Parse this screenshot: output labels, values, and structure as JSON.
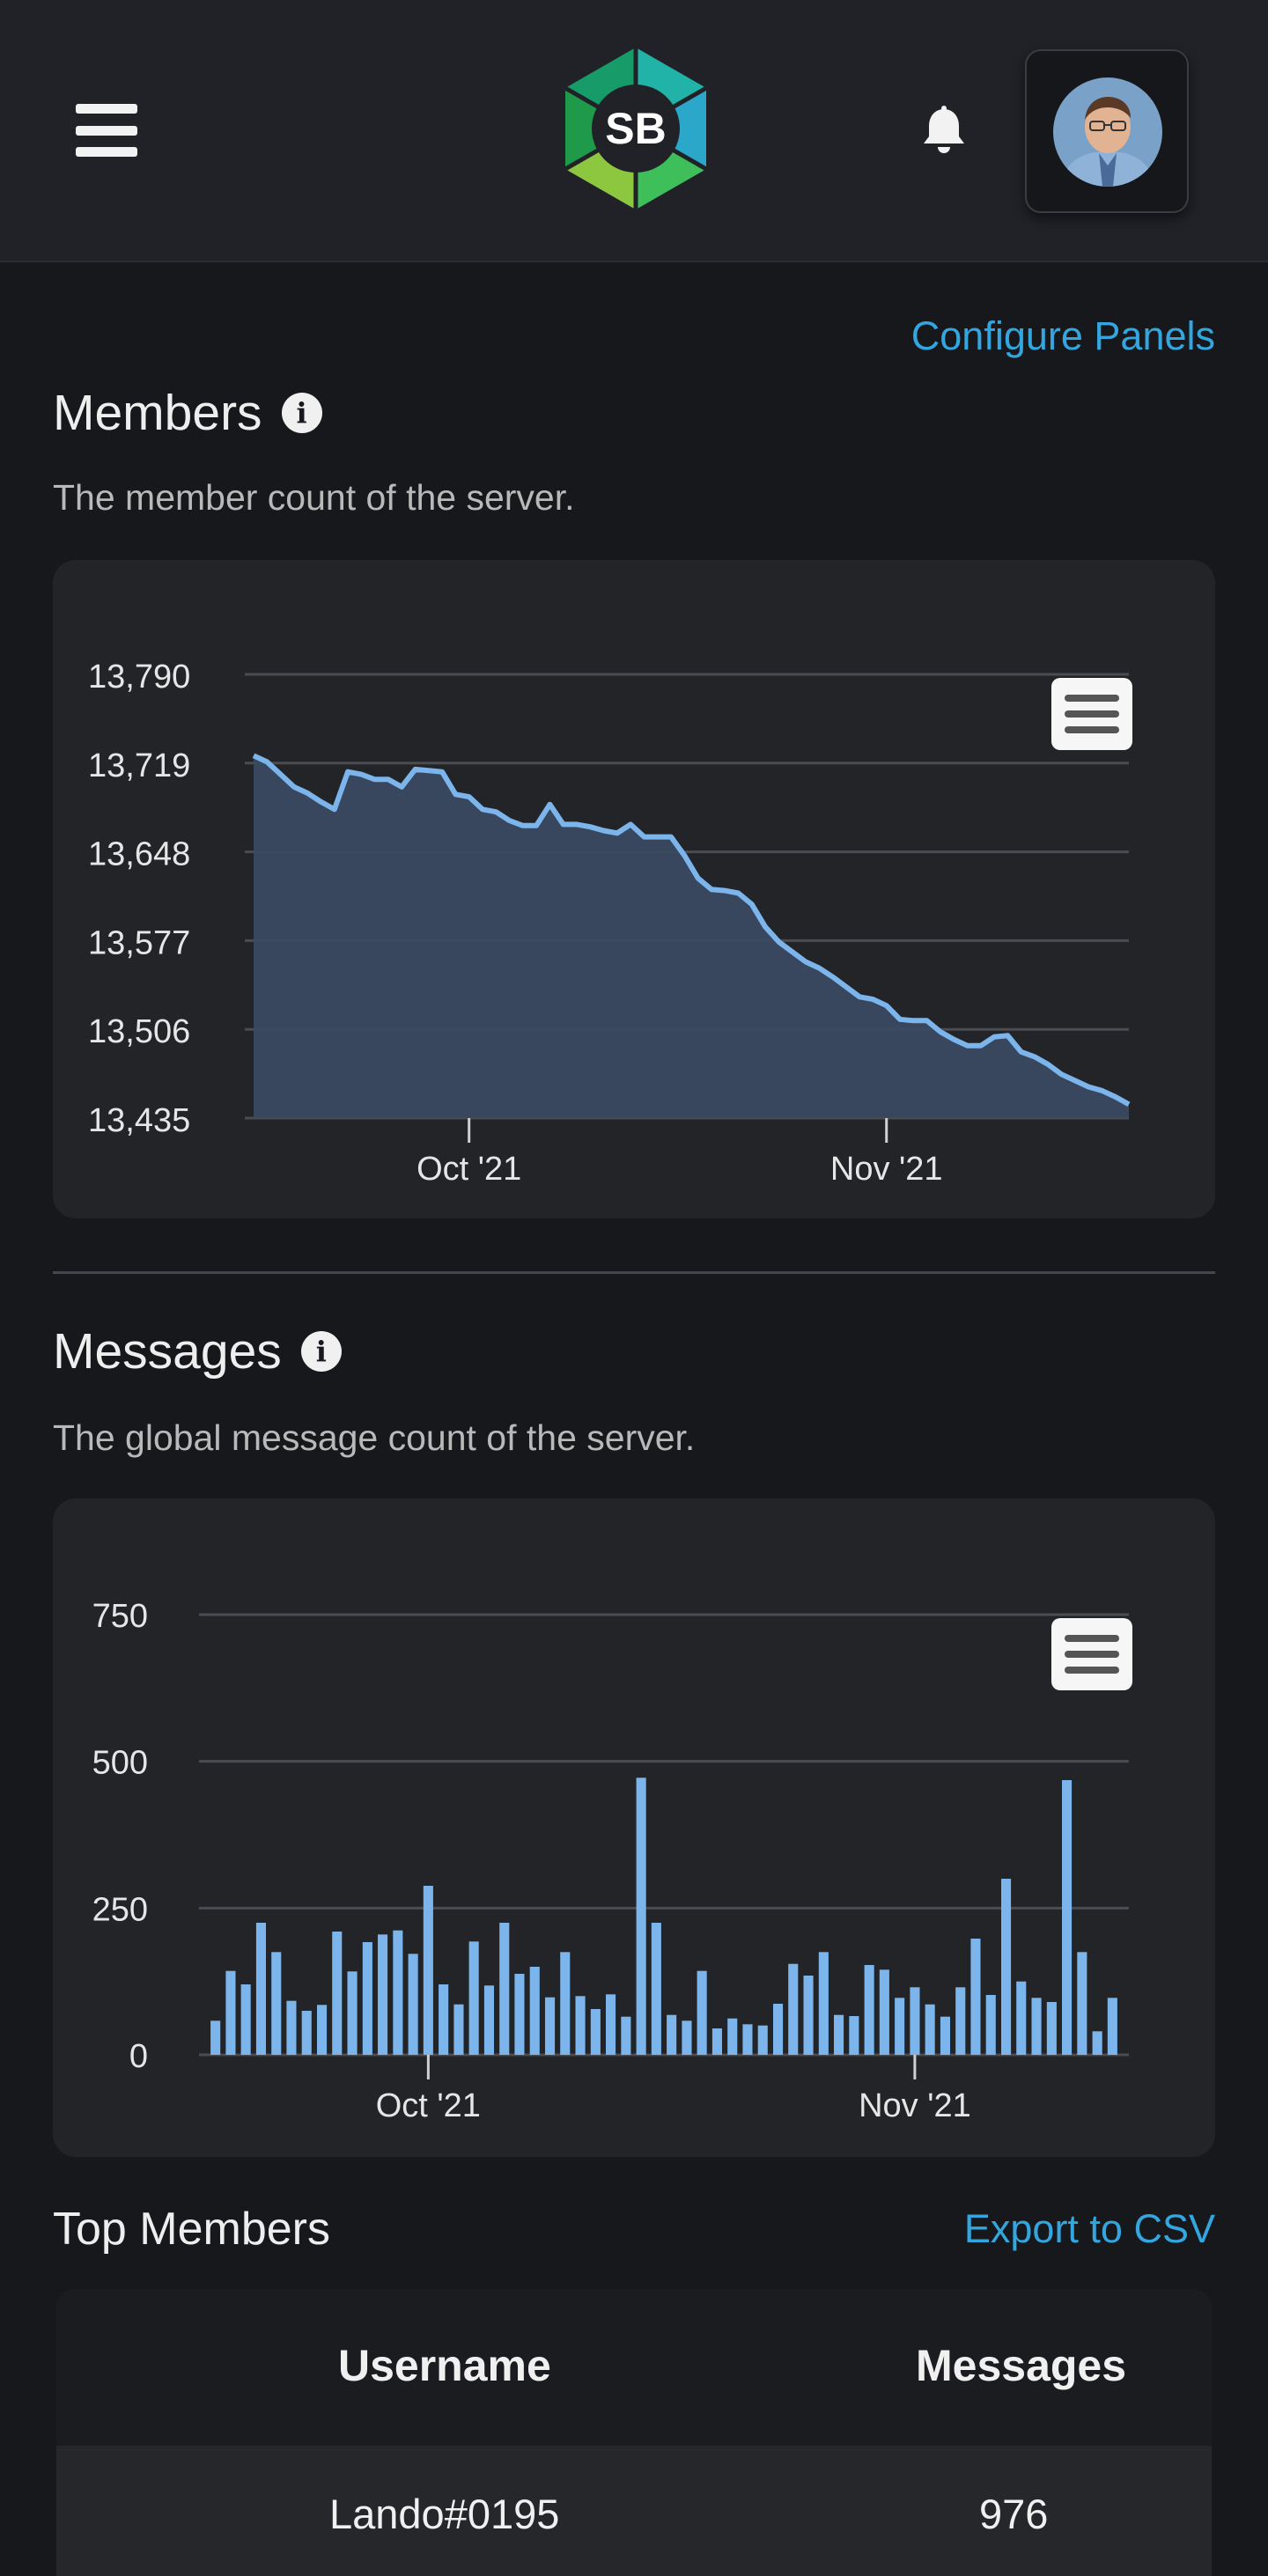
{
  "header": {
    "logo_text": "SB",
    "logo_alt": "server logo"
  },
  "configure_label": "Configure Panels",
  "members": {
    "title": "Members",
    "description": "The member count of the server."
  },
  "messages": {
    "title": "Messages",
    "description": "The global message count of the server."
  },
  "top_members": {
    "title": "Top Members",
    "export_label": "Export to CSV",
    "columns": [
      "Username",
      "Messages"
    ],
    "rows": [
      {
        "username": "Lando#0195",
        "messages": "976"
      }
    ]
  },
  "colors": {
    "accent": "#33a6df",
    "series": "#7cb5ec",
    "area": "#3a4a60",
    "bg": "#17181c",
    "card": "#222428"
  },
  "chart_data": [
    {
      "type": "area",
      "title": "",
      "ylim": [
        13435,
        13790
      ],
      "yticks": [
        "13,790",
        "13,719",
        "13,648",
        "13,577",
        "13,506",
        "13,435"
      ],
      "xticks": [
        {
          "label": "Oct '21",
          "day": 16
        },
        {
          "label": "Nov '21",
          "day": 47
        }
      ],
      "values": [
        13725,
        13720,
        13710,
        13700,
        13695,
        13688,
        13682,
        13712,
        13710,
        13706,
        13706,
        13700,
        13714,
        13713,
        13712,
        13694,
        13692,
        13682,
        13680,
        13673,
        13669,
        13669,
        13686,
        13670,
        13670,
        13668,
        13665,
        13663,
        13670,
        13660,
        13660,
        13660,
        13645,
        13627,
        13618,
        13617,
        13615,
        13606,
        13588,
        13576,
        13568,
        13560,
        13555,
        13548,
        13540,
        13532,
        13530,
        13525,
        13514,
        13513,
        13513,
        13504,
        13498,
        13493,
        13493,
        13500,
        13501,
        13488,
        13484,
        13478,
        13470,
        13465,
        13460,
        13457,
        13452,
        13446
      ],
      "grid": true
    },
    {
      "type": "bar",
      "title": "",
      "ylim": [
        0,
        750
      ],
      "yticks": [
        "750",
        "500",
        "250",
        "0"
      ],
      "xticks": [
        {
          "label": "Oct '21",
          "day": 14
        },
        {
          "label": "Nov '21",
          "day": 46
        }
      ],
      "values": [
        58,
        143,
        120,
        225,
        175,
        92,
        75,
        85,
        210,
        142,
        192,
        205,
        212,
        172,
        288,
        120,
        86,
        193,
        118,
        225,
        138,
        150,
        98,
        175,
        100,
        78,
        103,
        65,
        472,
        225,
        68,
        58,
        143,
        45,
        62,
        52,
        50,
        87,
        155,
        135,
        175,
        68,
        66,
        153,
        145,
        97,
        115,
        86,
        65,
        115,
        198,
        102,
        300,
        125,
        97,
        90,
        468,
        175,
        40,
        97
      ],
      "grid": true
    }
  ]
}
